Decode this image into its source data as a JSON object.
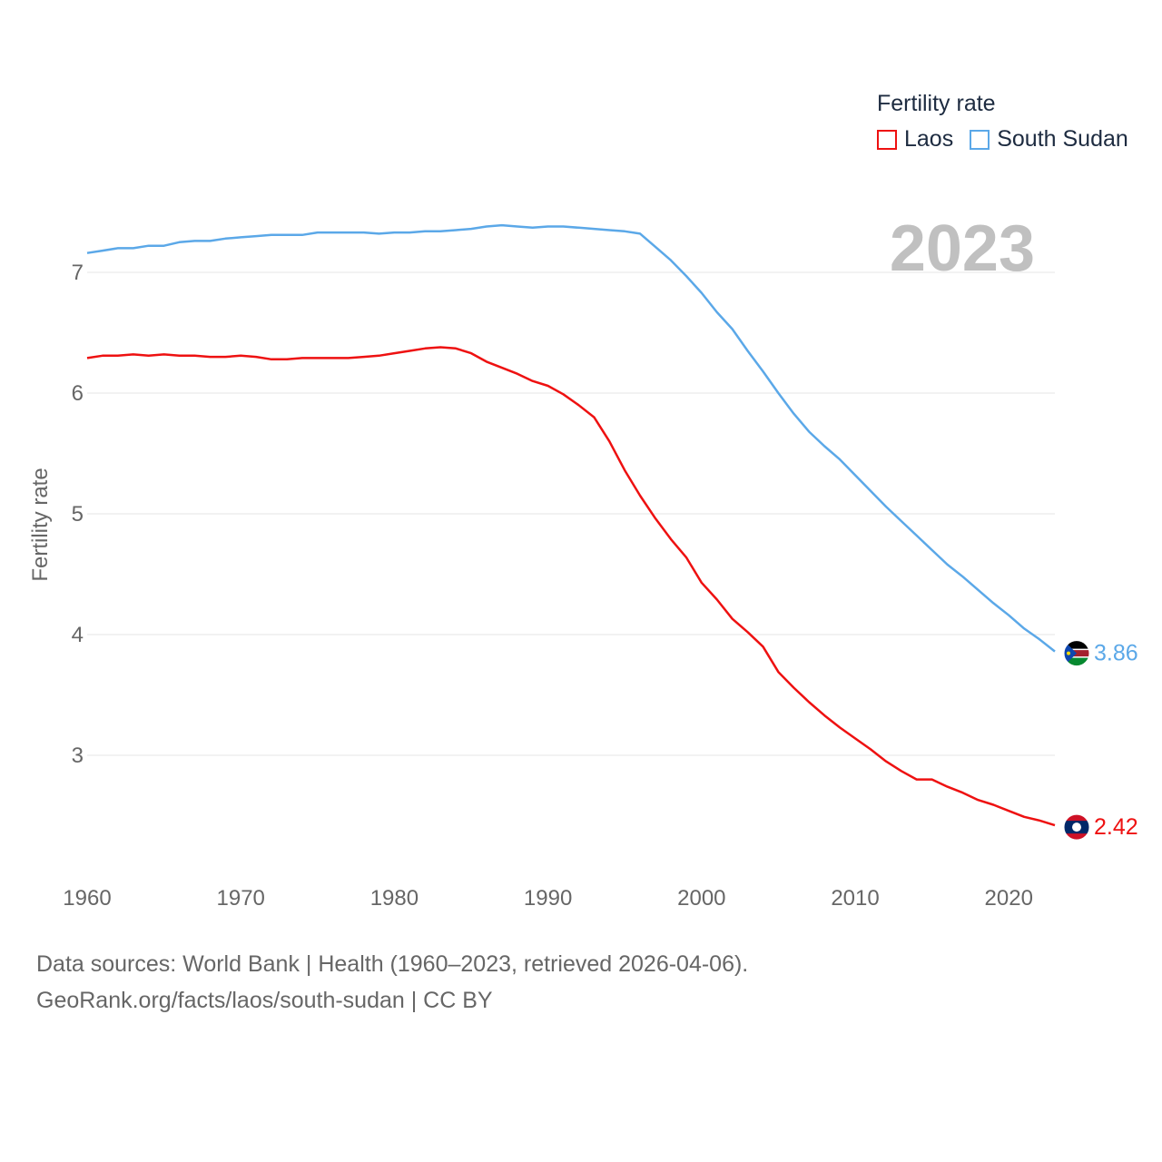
{
  "legend": {
    "title": "Fertility rate",
    "items": [
      {
        "label": "Laos",
        "color": "#ee1111"
      },
      {
        "label": "South Sudan",
        "color": "#5ba8e8"
      }
    ]
  },
  "year_label": "2023",
  "source": {
    "line1": "Data sources: World Bank | Health (1960–2023, retrieved 2026-04-06).",
    "line2": "GeoRank.org/facts/laos/south-sudan | CC BY"
  },
  "chart_data": {
    "type": "line",
    "title": "Fertility rate",
    "xlabel": "",
    "ylabel": "Fertility rate",
    "xlim": [
      1960,
      2023
    ],
    "ylim": [
      2.0,
      7.5
    ],
    "yticks": [
      3,
      4,
      5,
      6,
      7
    ],
    "xticks": [
      1960,
      1970,
      1980,
      1990,
      2000,
      2010,
      2020
    ],
    "grid": true,
    "legend_position": "top-right",
    "x": [
      1960,
      1961,
      1962,
      1963,
      1964,
      1965,
      1966,
      1967,
      1968,
      1969,
      1970,
      1971,
      1972,
      1973,
      1974,
      1975,
      1976,
      1977,
      1978,
      1979,
      1980,
      1981,
      1982,
      1983,
      1984,
      1985,
      1986,
      1987,
      1988,
      1989,
      1990,
      1991,
      1992,
      1993,
      1994,
      1995,
      1996,
      1997,
      1998,
      1999,
      2000,
      2001,
      2002,
      2003,
      2004,
      2005,
      2006,
      2007,
      2008,
      2009,
      2010,
      2011,
      2012,
      2013,
      2014,
      2015,
      2016,
      2017,
      2018,
      2019,
      2020,
      2021,
      2022,
      2023
    ],
    "series": [
      {
        "name": "Laos",
        "color": "#ee1111",
        "end_label": "2.42",
        "values": [
          6.29,
          6.31,
          6.31,
          6.32,
          6.31,
          6.32,
          6.31,
          6.31,
          6.3,
          6.3,
          6.31,
          6.3,
          6.28,
          6.28,
          6.29,
          6.29,
          6.29,
          6.29,
          6.3,
          6.31,
          6.33,
          6.35,
          6.37,
          6.38,
          6.37,
          6.33,
          6.26,
          6.21,
          6.16,
          6.1,
          6.06,
          5.99,
          5.9,
          5.8,
          5.6,
          5.36,
          5.15,
          4.96,
          4.79,
          4.64,
          4.43,
          4.29,
          4.13,
          4.02,
          3.9,
          3.69,
          3.56,
          3.44,
          3.33,
          3.23,
          3.14,
          3.05,
          2.95,
          2.87,
          2.8,
          2.8,
          2.74,
          2.69,
          2.63,
          2.59,
          2.54,
          2.49,
          2.46,
          2.42
        ]
      },
      {
        "name": "South Sudan",
        "color": "#5ba8e8",
        "end_label": "3.86",
        "values": [
          7.16,
          7.18,
          7.2,
          7.2,
          7.22,
          7.22,
          7.25,
          7.26,
          7.26,
          7.28,
          7.29,
          7.3,
          7.31,
          7.31,
          7.31,
          7.33,
          7.33,
          7.33,
          7.33,
          7.32,
          7.33,
          7.33,
          7.34,
          7.34,
          7.35,
          7.36,
          7.38,
          7.39,
          7.38,
          7.37,
          7.38,
          7.38,
          7.37,
          7.36,
          7.35,
          7.34,
          7.32,
          7.21,
          7.1,
          6.97,
          6.83,
          6.67,
          6.53,
          6.35,
          6.18,
          6.0,
          5.83,
          5.68,
          5.56,
          5.45,
          5.32,
          5.19,
          5.06,
          4.94,
          4.82,
          4.7,
          4.58,
          4.48,
          4.37,
          4.26,
          4.16,
          4.05,
          3.96,
          3.86
        ]
      }
    ]
  }
}
